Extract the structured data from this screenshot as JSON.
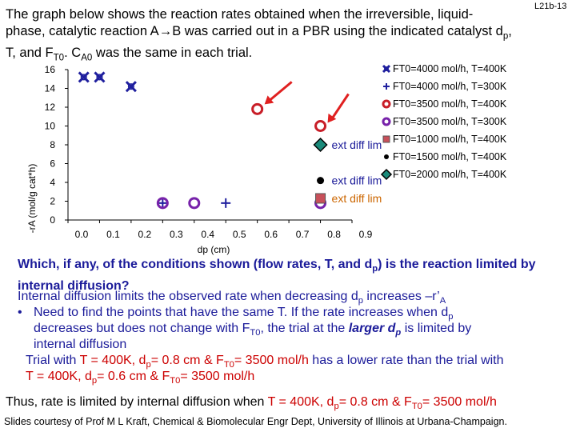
{
  "slide_id": "L21b-13",
  "intro": {
    "line1": "The graph below shows the reaction rates obtained when the irreversible, liquid-",
    "line2a": "phase, catalytic reaction A→B was carried out in a PBR using the indicated catalyst d",
    "line2_sub": "p",
    "line2b": ",",
    "line3a": "T, and F",
    "line3_sub1": "T0",
    "line3b": ". C",
    "line3_sub2": "A0",
    "line3c": " was the same in each trial."
  },
  "chart_data": {
    "type": "scatter",
    "xlabel": "dp (cm)",
    "ylabel": "-rA (mol/g cat*h)",
    "xlim": [
      0,
      0.9
    ],
    "ylim": [
      0,
      16
    ],
    "xticks": [
      "0.0",
      "0.1",
      "0.2",
      "0.3",
      "0.4",
      "0.5",
      "0.6",
      "0.7",
      "0.8",
      "0.9"
    ],
    "yticks": [
      "0",
      "2",
      "4",
      "6",
      "8",
      "10",
      "12",
      "14",
      "16"
    ],
    "legend_position": "right",
    "series": [
      {
        "name": "FT0=4000 mol/h, T=400K",
        "marker": "x",
        "color": "#1f1f9e",
        "points": [
          [
            0.05,
            15.2
          ],
          [
            0.1,
            15.2
          ],
          [
            0.2,
            14.2
          ]
        ]
      },
      {
        "name": "FT0=4000 mol/h, T=300K",
        "marker": "plus",
        "color": "#1f1f9e",
        "points": [
          [
            0.3,
            1.8
          ],
          [
            0.5,
            1.8
          ]
        ]
      },
      {
        "name": "FT0=3500 mol/h, T=400K",
        "marker": "circle",
        "color": "#c81e28",
        "points": [
          [
            0.6,
            11.8
          ],
          [
            0.8,
            10
          ]
        ]
      },
      {
        "name": "FT0=3500 mol/h, T=300K",
        "marker": "circle",
        "color": "#7722aa",
        "points": [
          [
            0.3,
            1.8
          ],
          [
            0.4,
            1.8
          ],
          [
            0.8,
            1.8
          ]
        ]
      },
      {
        "name": "FT0=1000 mol/h, T=400K",
        "marker": "square",
        "color": "#c8505a",
        "points": [
          [
            0.8,
            2.3
          ]
        ]
      },
      {
        "name": "FT0=1500 mol/h, T=400K",
        "marker": "dot",
        "color": "#000000",
        "points": [
          [
            0.8,
            4.2
          ]
        ]
      },
      {
        "name": "FT0=2000 mol/h, T=400K",
        "marker": "diamond",
        "color": "#1a8a7a",
        "points": [
          [
            0.8,
            8
          ]
        ]
      }
    ],
    "annotations": [
      {
        "text": "ext diff lim",
        "color": "#1a1a99"
      },
      {
        "text": "ext diff lim",
        "color": "#1a1a99"
      },
      {
        "text": "ext diff lim",
        "color": "#cc6600"
      }
    ],
    "arrow_color": "#e02020"
  },
  "question": {
    "a": "Which, if any, of the conditions shown (flow rates, T, and d",
    "a_sub": "p",
    "b": ") is the reaction limited by",
    "c": "internal diffusion?"
  },
  "explain": {
    "line1a": "Internal diffusion limits the observed rate when decreasing d",
    "line1_sub": "p",
    "line1b": " increases –r’",
    "line1_sub2": "A",
    "bullet": "•",
    "line2a": "Need to find the points that have the same T. If the rate increases when d",
    "line2_sub": "p",
    "line3a": "decreases but does not change with F",
    "line3_sub": "T0",
    "line3b": ", the trial at the ",
    "line3_em": "larger d",
    "line3_em_sub": "p",
    "line3c": " is limited by",
    "line4": "internal diffusion",
    "line5a": "Trial with ",
    "line5_red1": "T = 400K, d",
    "line5_sub1": "p",
    "line5_red2": "= 0.8 cm & F",
    "line5_sub2": "T0",
    "line5_red3": "= 3500 mol/h",
    "line5b": " has a lower rate than the trial with",
    "line6_red1": "T = 400K, d",
    "line6_sub1": "p",
    "line6_red2": "= 0.6 cm & F",
    "line6_sub2": "T0",
    "line6_red3": "= 3500 mol/h"
  },
  "conclusion": {
    "a": "Thus, rate is limited by internal diffusion when ",
    "red1": "T = 400K, d",
    "sub1": "p",
    "red2": "= 0.8 cm & F",
    "sub2": "T0",
    "red3": "= 3500 mol/h"
  },
  "credit": "Slides courtesy of Prof M L Kraft, Chemical & Biomolecular Engr Dept, University of Illinois at Urbana-Champaign."
}
